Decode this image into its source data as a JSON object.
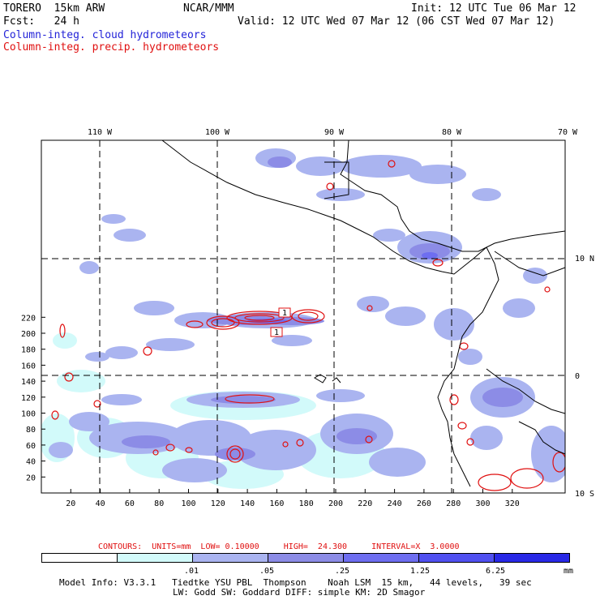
{
  "header": {
    "model": "TORERO  15km ARW",
    "org": "NCAR/MMM",
    "init": "Init: 12 UTC Tue 06 Mar 12",
    "fcst": "Fcst:   24 h",
    "valid": "Valid: 12 UTC Wed 07 Mar 12 (06 CST Wed 07 Mar 12)",
    "field1": "Column-integ. cloud hydrometeors",
    "field2": "Column-integ. precip. hydrometeors"
  },
  "map": {
    "lon_labels": [
      "110 W",
      "100 W",
      "90 W",
      "80 W",
      "70 W"
    ],
    "lat_labels": [
      "10 N",
      "0",
      "10 S"
    ],
    "x_ticks": [
      "20",
      "40",
      "60",
      "80",
      "100",
      "120",
      "140",
      "160",
      "180",
      "200",
      "220",
      "240",
      "260",
      "280",
      "300",
      "320"
    ],
    "y_ticks": [
      "20",
      "40",
      "60",
      "80",
      "100",
      "120",
      "140",
      "160",
      "180",
      "200",
      "220"
    ],
    "contour_label": "1"
  },
  "contours_line": "CONTOURS:  UNITS=mm  LOW= 0.10000     HIGH=  24.300     INTERVAL=X  3.0000",
  "colorbar": {
    "labels": [
      ".01",
      ".05",
      ".25",
      "1.25",
      "6.25"
    ],
    "unit": "mm",
    "colors": [
      "#ffffff",
      "#d2fafa",
      "#aab4f0",
      "#8c8ce6",
      "#6e6ef0",
      "#5050f0",
      "#2828e6"
    ]
  },
  "model_info": {
    "line1": "Model Info: V3.3.1   Tiedtke YSU PBL  Thompson    Noah LSM  15 km,   44 levels,   39 sec",
    "line2": "LW: Godd SW: Goddard DIFF: simple KM: 2D Smagor"
  }
}
